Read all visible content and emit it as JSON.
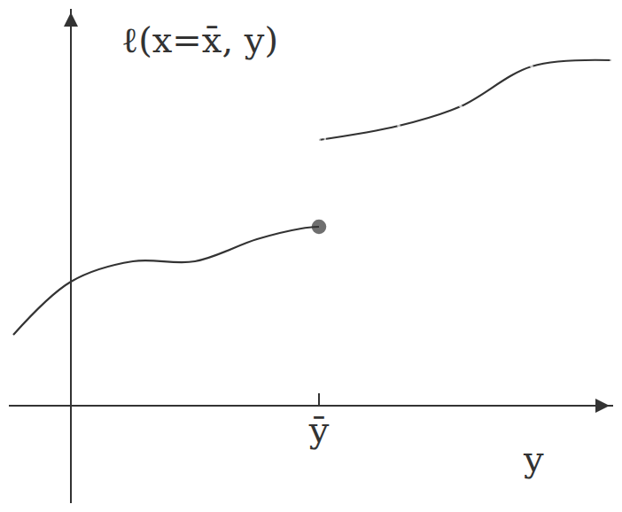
{
  "chart_data": {
    "type": "line",
    "y_label": "ℓ(x=x̄, y)",
    "x_label": "y",
    "x": [
      -0.65,
      0,
      0.7,
      1.4,
      2.1,
      2.6,
      2.8,
      2.8,
      3.7,
      4.4,
      5.2,
      6.1
    ],
    "series": [
      {
        "color": "#333333",
        "marker": "filled",
        "line_style": "solid",
        "values": [
          0.8,
          1.4,
          1.63,
          1.63,
          1.88,
          2.0,
          2.02,
          null,
          null,
          null,
          null,
          null
        ]
      },
      {
        "color": "#333333",
        "marker": "open",
        "line_style": "solid",
        "values": [
          null,
          null,
          null,
          null,
          null,
          null,
          null,
          3.0,
          3.16,
          3.38,
          3.83,
          3.9
        ]
      }
    ],
    "xlim": [
      -0.7,
      6.12
    ],
    "ylim": [
      -1.1,
      4.48
    ],
    "xticks": [
      {
        "value": 2.8,
        "label": "ȳ"
      }
    ],
    "yticks": [],
    "grid": false,
    "tick_labels": "x"
  }
}
